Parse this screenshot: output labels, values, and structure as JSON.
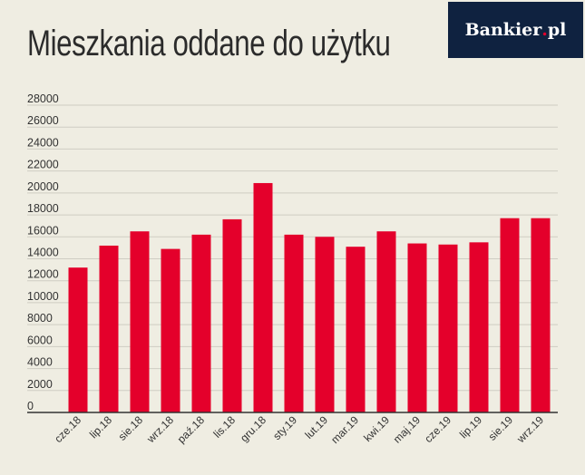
{
  "title": "Mieszkania oddane do użytku",
  "logo": {
    "text": "Bankier",
    "suffix": "pl"
  },
  "colors": {
    "bar": "#e4002b",
    "background": "#efede2",
    "grid": "#cfcdc3",
    "logo_bg": "#0f2240"
  },
  "chart_data": {
    "type": "bar",
    "categories": [
      "cze.18",
      "lip.18",
      "sie.18",
      "wrz.18",
      "paź.18",
      "lis.18",
      "gru.18",
      "sty.19",
      "lut.19",
      "mar.19",
      "kwi.19",
      "maj.19",
      "cze.19",
      "lip.19",
      "sie.19",
      "wrz.19"
    ],
    "values": [
      13200,
      15200,
      16500,
      14900,
      16200,
      17600,
      20900,
      16200,
      16000,
      15100,
      16500,
      15400,
      15300,
      15500,
      17700,
      17700
    ],
    "title": "Mieszkania oddane do użytku",
    "xlabel": "",
    "ylabel": "",
    "ylim": [
      0,
      28000
    ],
    "yticks": [
      "28000",
      "26000",
      "24000",
      "22000",
      "20000",
      "18000",
      "16000",
      "14000",
      "12000",
      "10000",
      "8000",
      "6000",
      "4000",
      "2000",
      "0"
    ],
    "grid": true,
    "legend": "none"
  }
}
